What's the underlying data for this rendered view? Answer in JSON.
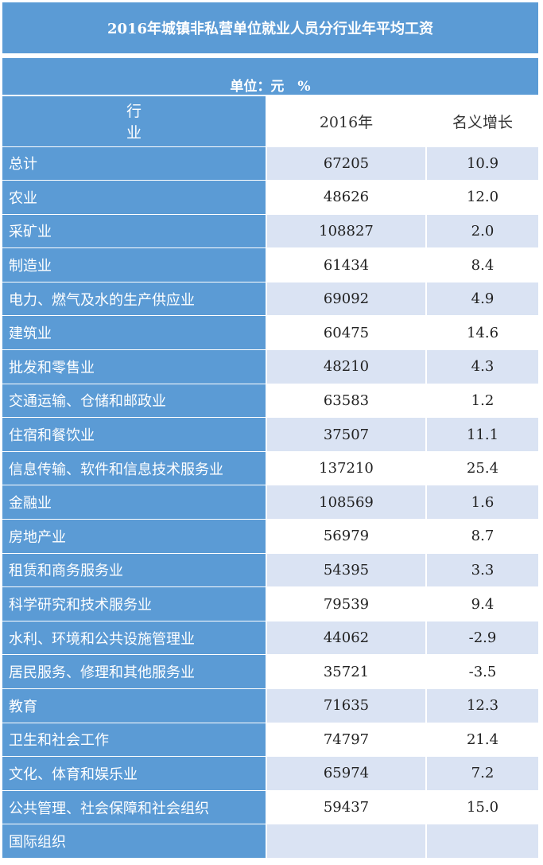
{
  "title": "2016年城镇非私营单位就业人员分行业年平均工资",
  "unit": "单位：元　%",
  "headers": [
    "行　　业",
    "2016年",
    "名义增长"
  ],
  "rows": [
    {
      "industry": "总计",
      "wage": "67205",
      "growth": "10.9"
    },
    {
      "industry": "农业",
      "wage": "48626",
      "growth": "12.0"
    },
    {
      "industry": "采矿业",
      "wage": "108827",
      "growth": "2.0"
    },
    {
      "industry": "制造业",
      "wage": "61434",
      "growth": "8.4"
    },
    {
      "industry": "电力、燃气及水的生产供应业",
      "wage": "69092",
      "growth": "4.9"
    },
    {
      "industry": "建筑业",
      "wage": "60475",
      "growth": "14.6"
    },
    {
      "industry": "批发和零售业",
      "wage": "48210",
      "growth": "4.3"
    },
    {
      "industry": "交通运输、仓储和邮政业",
      "wage": "63583",
      "growth": "1.2"
    },
    {
      "industry": "住宿和餐饮业",
      "wage": "37507",
      "growth": "11.1"
    },
    {
      "industry": "信息传输、软件和信息技术服务业",
      "wage": "137210",
      "growth": "25.4"
    },
    {
      "industry": "金融业",
      "wage": "108569",
      "growth": "1.6"
    },
    {
      "industry": "房地产业",
      "wage": "56979",
      "growth": "8.7"
    },
    {
      "industry": "租赁和商务服务业",
      "wage": "54395",
      "growth": "3.3"
    },
    {
      "industry": "科学研究和技术服务业",
      "wage": "79539",
      "growth": "9.4"
    },
    {
      "industry": "水利、环境和公共设施管理业",
      "wage": "44062",
      "growth": "-2.9"
    },
    {
      "industry": "居民服务、修理和其他服务业",
      "wage": "35721",
      "growth": "-3.5"
    },
    {
      "industry": "教育",
      "wage": "71635",
      "growth": "12.3"
    },
    {
      "industry": "卫生和社会工作",
      "wage": "74797",
      "growth": "21.4"
    },
    {
      "industry": "文化、体育和娱乐业",
      "wage": "65974",
      "growth": "7.2"
    },
    {
      "industry": "公共管理、社会保障和社会组织",
      "wage": "59437",
      "growth": "15.0"
    },
    {
      "industry": "国际组织",
      "wage": "",
      "growth": ""
    }
  ]
}
